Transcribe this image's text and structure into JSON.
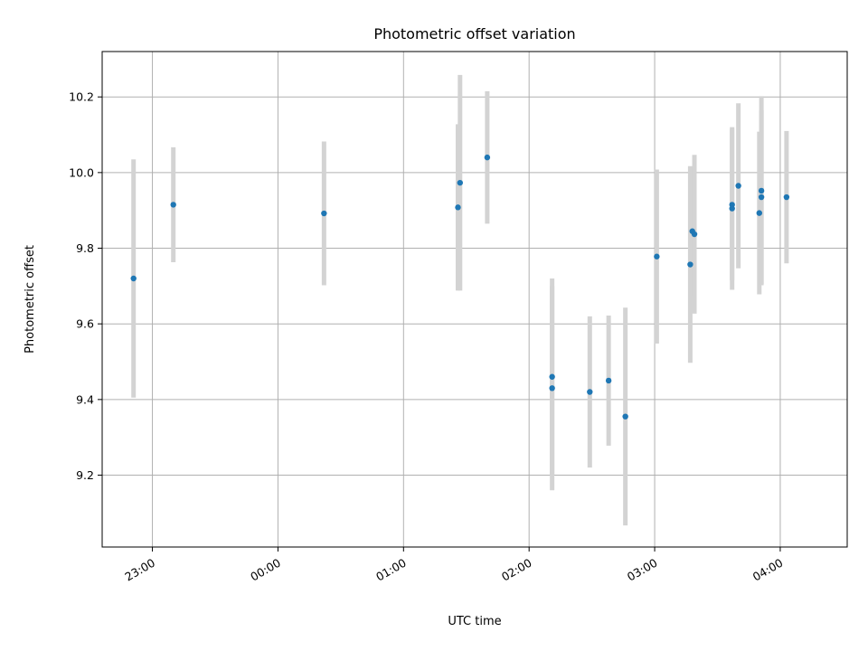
{
  "chart_data": {
    "type": "scatter",
    "title": "Photometric offset variation",
    "xlabel": "UTC time",
    "ylabel": "Photometric offset",
    "x_tick_labels": [
      "23:00",
      "00:00",
      "01:00",
      "02:00",
      "03:00",
      "04:00"
    ],
    "x_tick_hours": [
      23,
      24,
      25,
      26,
      27,
      28
    ],
    "xlim": [
      "22:36",
      "04:32"
    ],
    "y_ticks": [
      9.2,
      9.4,
      9.6,
      9.8,
      10.0,
      10.2
    ],
    "ylim": [
      9.01,
      10.32
    ],
    "grid": true,
    "colors": {
      "points": "#1f77b4",
      "errorbars": "#d3d3d3"
    },
    "points": [
      {
        "t": "22:51",
        "y": 9.72,
        "err": 0.315
      },
      {
        "t": "23:10",
        "y": 9.915,
        "err": 0.152
      },
      {
        "t": "00:22",
        "y": 9.892,
        "err": 0.19
      },
      {
        "t": "01:26",
        "y": 9.908,
        "err": 0.22
      },
      {
        "t": "01:27",
        "y": 9.973,
        "err": 0.285
      },
      {
        "t": "01:40",
        "y": 10.04,
        "err": 0.175
      },
      {
        "t": "02:11",
        "y": 9.46,
        "err": 0.26
      },
      {
        "t": "02:11",
        "y": 9.43,
        "err": 0.27
      },
      {
        "t": "02:29",
        "y": 9.42,
        "err": 0.2
      },
      {
        "t": "02:38",
        "y": 9.45,
        "err": 0.172
      },
      {
        "t": "02:46",
        "y": 9.355,
        "err": 0.288
      },
      {
        "t": "03:01",
        "y": 9.778,
        "err": 0.23
      },
      {
        "t": "03:17",
        "y": 9.757,
        "err": 0.26
      },
      {
        "t": "03:18",
        "y": 9.845,
        "err": 0.17
      },
      {
        "t": "03:19",
        "y": 9.837,
        "err": 0.21
      },
      {
        "t": "03:37",
        "y": 9.915,
        "err": 0.2
      },
      {
        "t": "03:37",
        "y": 9.905,
        "err": 0.215
      },
      {
        "t": "03:40",
        "y": 9.965,
        "err": 0.218
      },
      {
        "t": "03:50",
        "y": 9.893,
        "err": 0.215
      },
      {
        "t": "03:51",
        "y": 9.952,
        "err": 0.25
      },
      {
        "t": "03:51",
        "y": 9.935,
        "err": 0.23
      },
      {
        "t": "04:03",
        "y": 9.935,
        "err": 0.175
      }
    ]
  }
}
